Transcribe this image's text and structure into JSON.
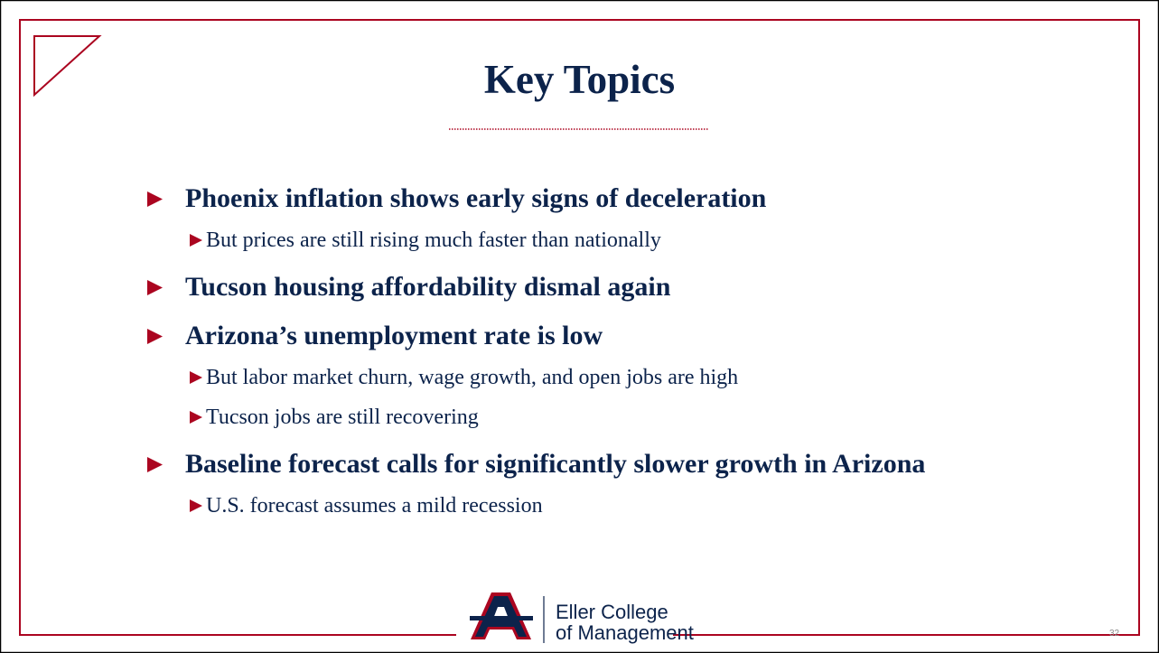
{
  "title": "Key Topics",
  "bullets": [
    {
      "text": "Phoenix inflation shows early signs of deceleration",
      "sub": [
        "But prices are still rising much faster than nationally"
      ]
    },
    {
      "text": "Tucson housing affordability dismal again",
      "sub": []
    },
    {
      "text": "Arizona’s unemployment rate is low",
      "sub": [
        "But labor market churn, wage growth, and open jobs are high",
        "Tucson jobs are still recovering"
      ]
    },
    {
      "text": "Baseline forecast calls for significantly slower growth in Arizona",
      "sub": [
        "U.S. forecast assumes a mild recession"
      ]
    }
  ],
  "footer": {
    "logo_line1": "Eller College",
    "logo_line2": "of Management"
  },
  "page_number": "32"
}
